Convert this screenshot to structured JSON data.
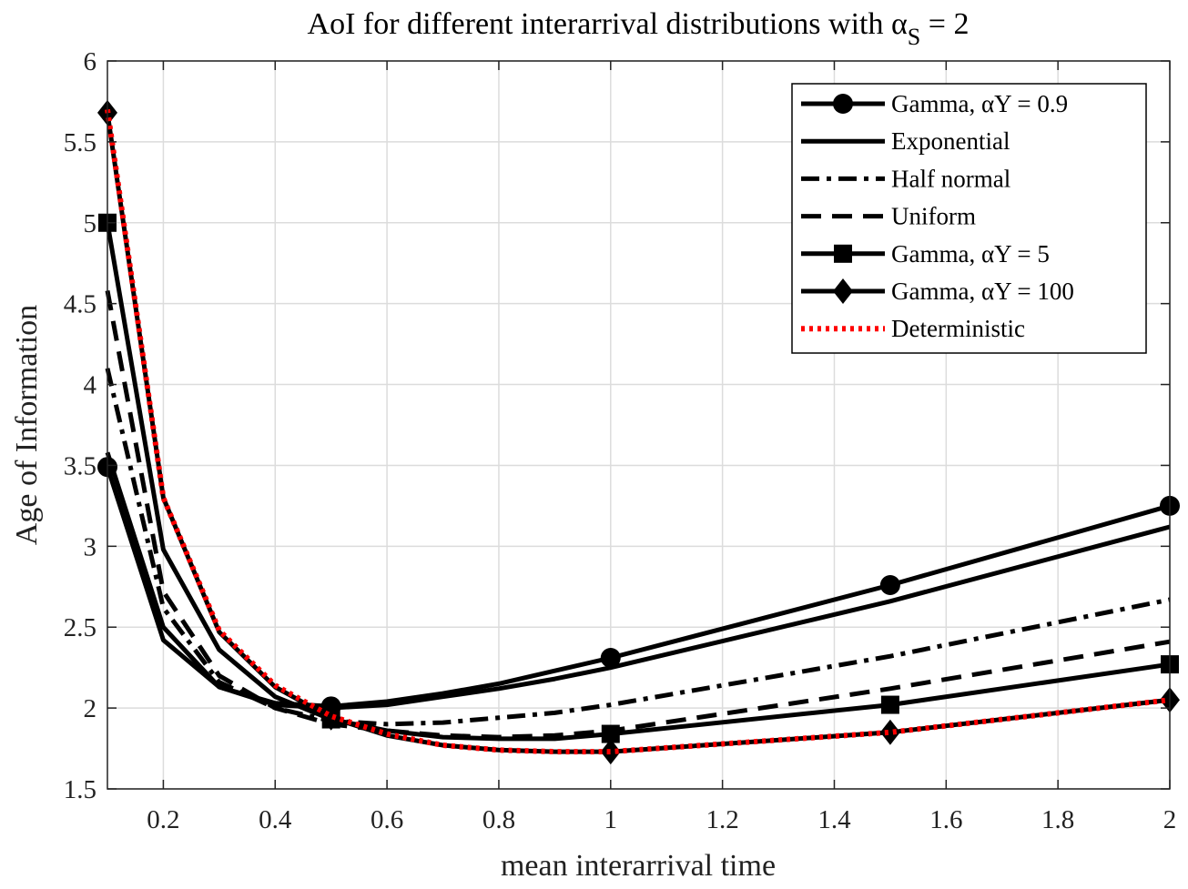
{
  "chart_data": {
    "type": "line",
    "title": "AoI for different interarrival distributions with αS = 2",
    "xlabel": "mean interarrival time",
    "ylabel": "Age of Information",
    "xlim": [
      0.1,
      2.0
    ],
    "ylim": [
      1.5,
      6.0
    ],
    "xticks": [
      0.2,
      0.4,
      0.6,
      0.8,
      1.0,
      1.2,
      1.4,
      1.6,
      1.8,
      2.0
    ],
    "xtick_labels": [
      "0.2",
      "0.4",
      "0.6",
      "0.8",
      "1",
      "1.2",
      "1.4",
      "1.6",
      "1.8",
      "2"
    ],
    "yticks": [
      1.5,
      2.0,
      2.5,
      3.0,
      3.5,
      4.0,
      4.5,
      5.0,
      5.5,
      6.0
    ],
    "ytick_labels": [
      "1.5",
      "2",
      "2.5",
      "3",
      "3.5",
      "4",
      "4.5",
      "5",
      "5.5",
      "6"
    ],
    "grid": true,
    "legend_position": "top-right",
    "x": [
      0.1,
      0.2,
      0.3,
      0.4,
      0.5,
      0.6,
      0.7,
      0.8,
      0.9,
      1.0,
      1.5,
      2.0
    ],
    "series": [
      {
        "name": "Gamma, αY = 0.9",
        "style": "solid",
        "marker": "circle",
        "color": "#000000",
        "values": [
          3.49,
          2.42,
          2.13,
          2.03,
          2.01,
          2.04,
          2.09,
          2.15,
          2.23,
          2.31,
          2.76,
          3.25
        ]
      },
      {
        "name": "Exponential",
        "style": "solid",
        "marker": "none",
        "color": "#000000",
        "values": [
          3.58,
          2.5,
          2.13,
          2.02,
          2.0,
          2.02,
          2.07,
          2.12,
          2.18,
          2.25,
          2.66,
          3.12
        ]
      },
      {
        "name": "Half normal",
        "style": "dashdot",
        "marker": "none",
        "color": "#000000",
        "values": [
          4.1,
          2.62,
          2.16,
          2.0,
          1.92,
          1.9,
          1.91,
          1.94,
          1.97,
          2.02,
          2.32,
          2.67
        ]
      },
      {
        "name": "Uniform",
        "style": "dashed",
        "marker": "none",
        "color": "#000000",
        "values": [
          4.58,
          2.72,
          2.2,
          2.0,
          1.9,
          1.86,
          1.83,
          1.82,
          1.83,
          1.86,
          2.12,
          2.41
        ]
      },
      {
        "name": "Gamma, αY = 5",
        "style": "solid",
        "marker": "square",
        "color": "#000000",
        "values": [
          5.0,
          2.98,
          2.36,
          2.07,
          1.93,
          1.86,
          1.82,
          1.81,
          1.81,
          1.84,
          2.02,
          2.27
        ]
      },
      {
        "name": "Gamma, αY = 100",
        "style": "solid",
        "marker": "diamond",
        "color": "#000000",
        "values": [
          5.68,
          3.3,
          2.47,
          2.13,
          1.94,
          1.83,
          1.77,
          1.74,
          1.73,
          1.73,
          1.85,
          2.05
        ]
      },
      {
        "name": "Deterministic",
        "style": "dotted",
        "marker": "none",
        "color": "#ff0000",
        "values": [
          5.7,
          3.3,
          2.48,
          2.14,
          1.95,
          1.84,
          1.77,
          1.74,
          1.73,
          1.73,
          1.85,
          2.05
        ]
      }
    ],
    "marker_x": [
      0.1,
      0.5,
      1.0,
      1.5,
      2.0
    ]
  }
}
